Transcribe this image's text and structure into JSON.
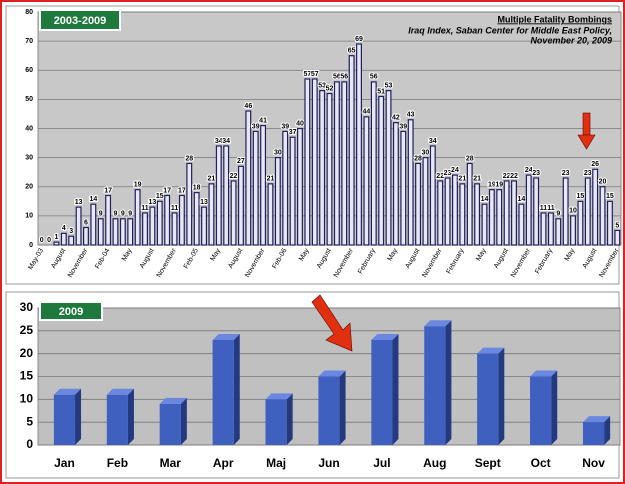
{
  "chart_data": [
    {
      "type": "bar",
      "label": "2003-2009",
      "title": "Multiple Fatality Bombings",
      "source": [
        "Iraq Index, Saban Center for Middle East Policy,",
        "November 20, 2009"
      ],
      "categories": [
        "May-03",
        null,
        null,
        "August",
        null,
        null,
        "November",
        null,
        null,
        "Feb-04",
        null,
        null,
        "May",
        null,
        null,
        "August",
        null,
        null,
        "November",
        null,
        null,
        "Feb-05",
        null,
        null,
        "May",
        null,
        null,
        "August",
        null,
        null,
        "November",
        null,
        null,
        "Feb-06",
        null,
        null,
        "May",
        null,
        null,
        "August",
        null,
        null,
        "November",
        null,
        null,
        "February",
        null,
        null,
        "May",
        null,
        null,
        "August",
        null,
        null,
        "November",
        null,
        null,
        "February",
        null,
        null,
        "May",
        null,
        null,
        "August",
        null,
        null,
        "November",
        null,
        null,
        "February",
        null,
        null,
        "May",
        null,
        null,
        "August",
        null,
        null,
        "November"
      ],
      "values": [
        0,
        0,
        1,
        4,
        3,
        13,
        6,
        14,
        9,
        17,
        9,
        9,
        9,
        19,
        11,
        13,
        15,
        17,
        11,
        17,
        28,
        18,
        13,
        21,
        34,
        34,
        22,
        27,
        46,
        39,
        41,
        21,
        30,
        39,
        37,
        40,
        57,
        57,
        53,
        52,
        56,
        56,
        65,
        69,
        44,
        56,
        51,
        53,
        42,
        39,
        43,
        28,
        30,
        34,
        22,
        23,
        24,
        21,
        28,
        21,
        14,
        19,
        19,
        22,
        22,
        14,
        24,
        23,
        11,
        11,
        9,
        23,
        10,
        15,
        23,
        26,
        20,
        15,
        5
      ],
      "color": "#1f1f5c",
      "ylim": [
        0,
        80
      ],
      "yticks": [
        0,
        10,
        20,
        30,
        40,
        50,
        60,
        70,
        80
      ],
      "grid": true
    },
    {
      "type": "bar",
      "label": "2009",
      "categories": [
        "Jan",
        "Feb",
        "Mar",
        "Apr",
        "Maj",
        "Jun",
        "Jul",
        "Aug",
        "Sept",
        "Oct",
        "Nov"
      ],
      "values": [
        11,
        11,
        9,
        23,
        10,
        15,
        23,
        26,
        20,
        15,
        5
      ],
      "color": "#4060c0",
      "ylim": [
        0,
        30
      ],
      "yticks": [
        0,
        5,
        10,
        15,
        20,
        25,
        30
      ],
      "grid": true
    }
  ]
}
